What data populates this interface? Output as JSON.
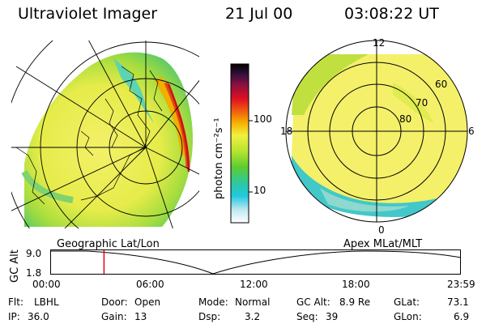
{
  "header": {
    "title": "Ultraviolet Imager",
    "date": "21 Jul 00",
    "time": "03:08:22 UT"
  },
  "colorbar": {
    "unit_label": "photon cm⁻²s⁻¹",
    "ticks": [
      "100",
      "10"
    ]
  },
  "polar_plot": {
    "mlt_labels": [
      "12",
      "18",
      "6",
      "0"
    ],
    "mlat_labels": [
      "60",
      "70",
      "80"
    ]
  },
  "timeline": {
    "left_label": "Geographic Lat/Lon",
    "right_label": "Apex MLat/MLT",
    "y_axis_label": "GC Alt",
    "y_ticks": [
      "9.0",
      "1.8"
    ],
    "x_ticks": [
      "00:00",
      "06:00",
      "12:00",
      "18:00",
      "23:59"
    ],
    "marker_hour": 3.14
  },
  "info": {
    "flt_key": "Flt:",
    "flt_val": "LBHL",
    "ip_key": "IP:",
    "ip_val": "36.0",
    "door_key": "Door:",
    "door_val": "Open",
    "gain_key": "Gain:",
    "gain_val": "13",
    "mode_key": "Mode:",
    "mode_val": "Normal",
    "dsp_key": "Dsp:",
    "dsp_val": "3.2",
    "gcalt_key": "GC Alt:",
    "gcalt_val": "8.9 Re",
    "seq_key": "Seq:",
    "seq_val": "39",
    "glat_key": "GLat:",
    "glat_val": "73.1",
    "glon_key": "GLon:",
    "glon_val": "6.9"
  },
  "colors": {
    "marker": "#e8001a",
    "intense": "#cc1020",
    "background": "#ffffff"
  }
}
